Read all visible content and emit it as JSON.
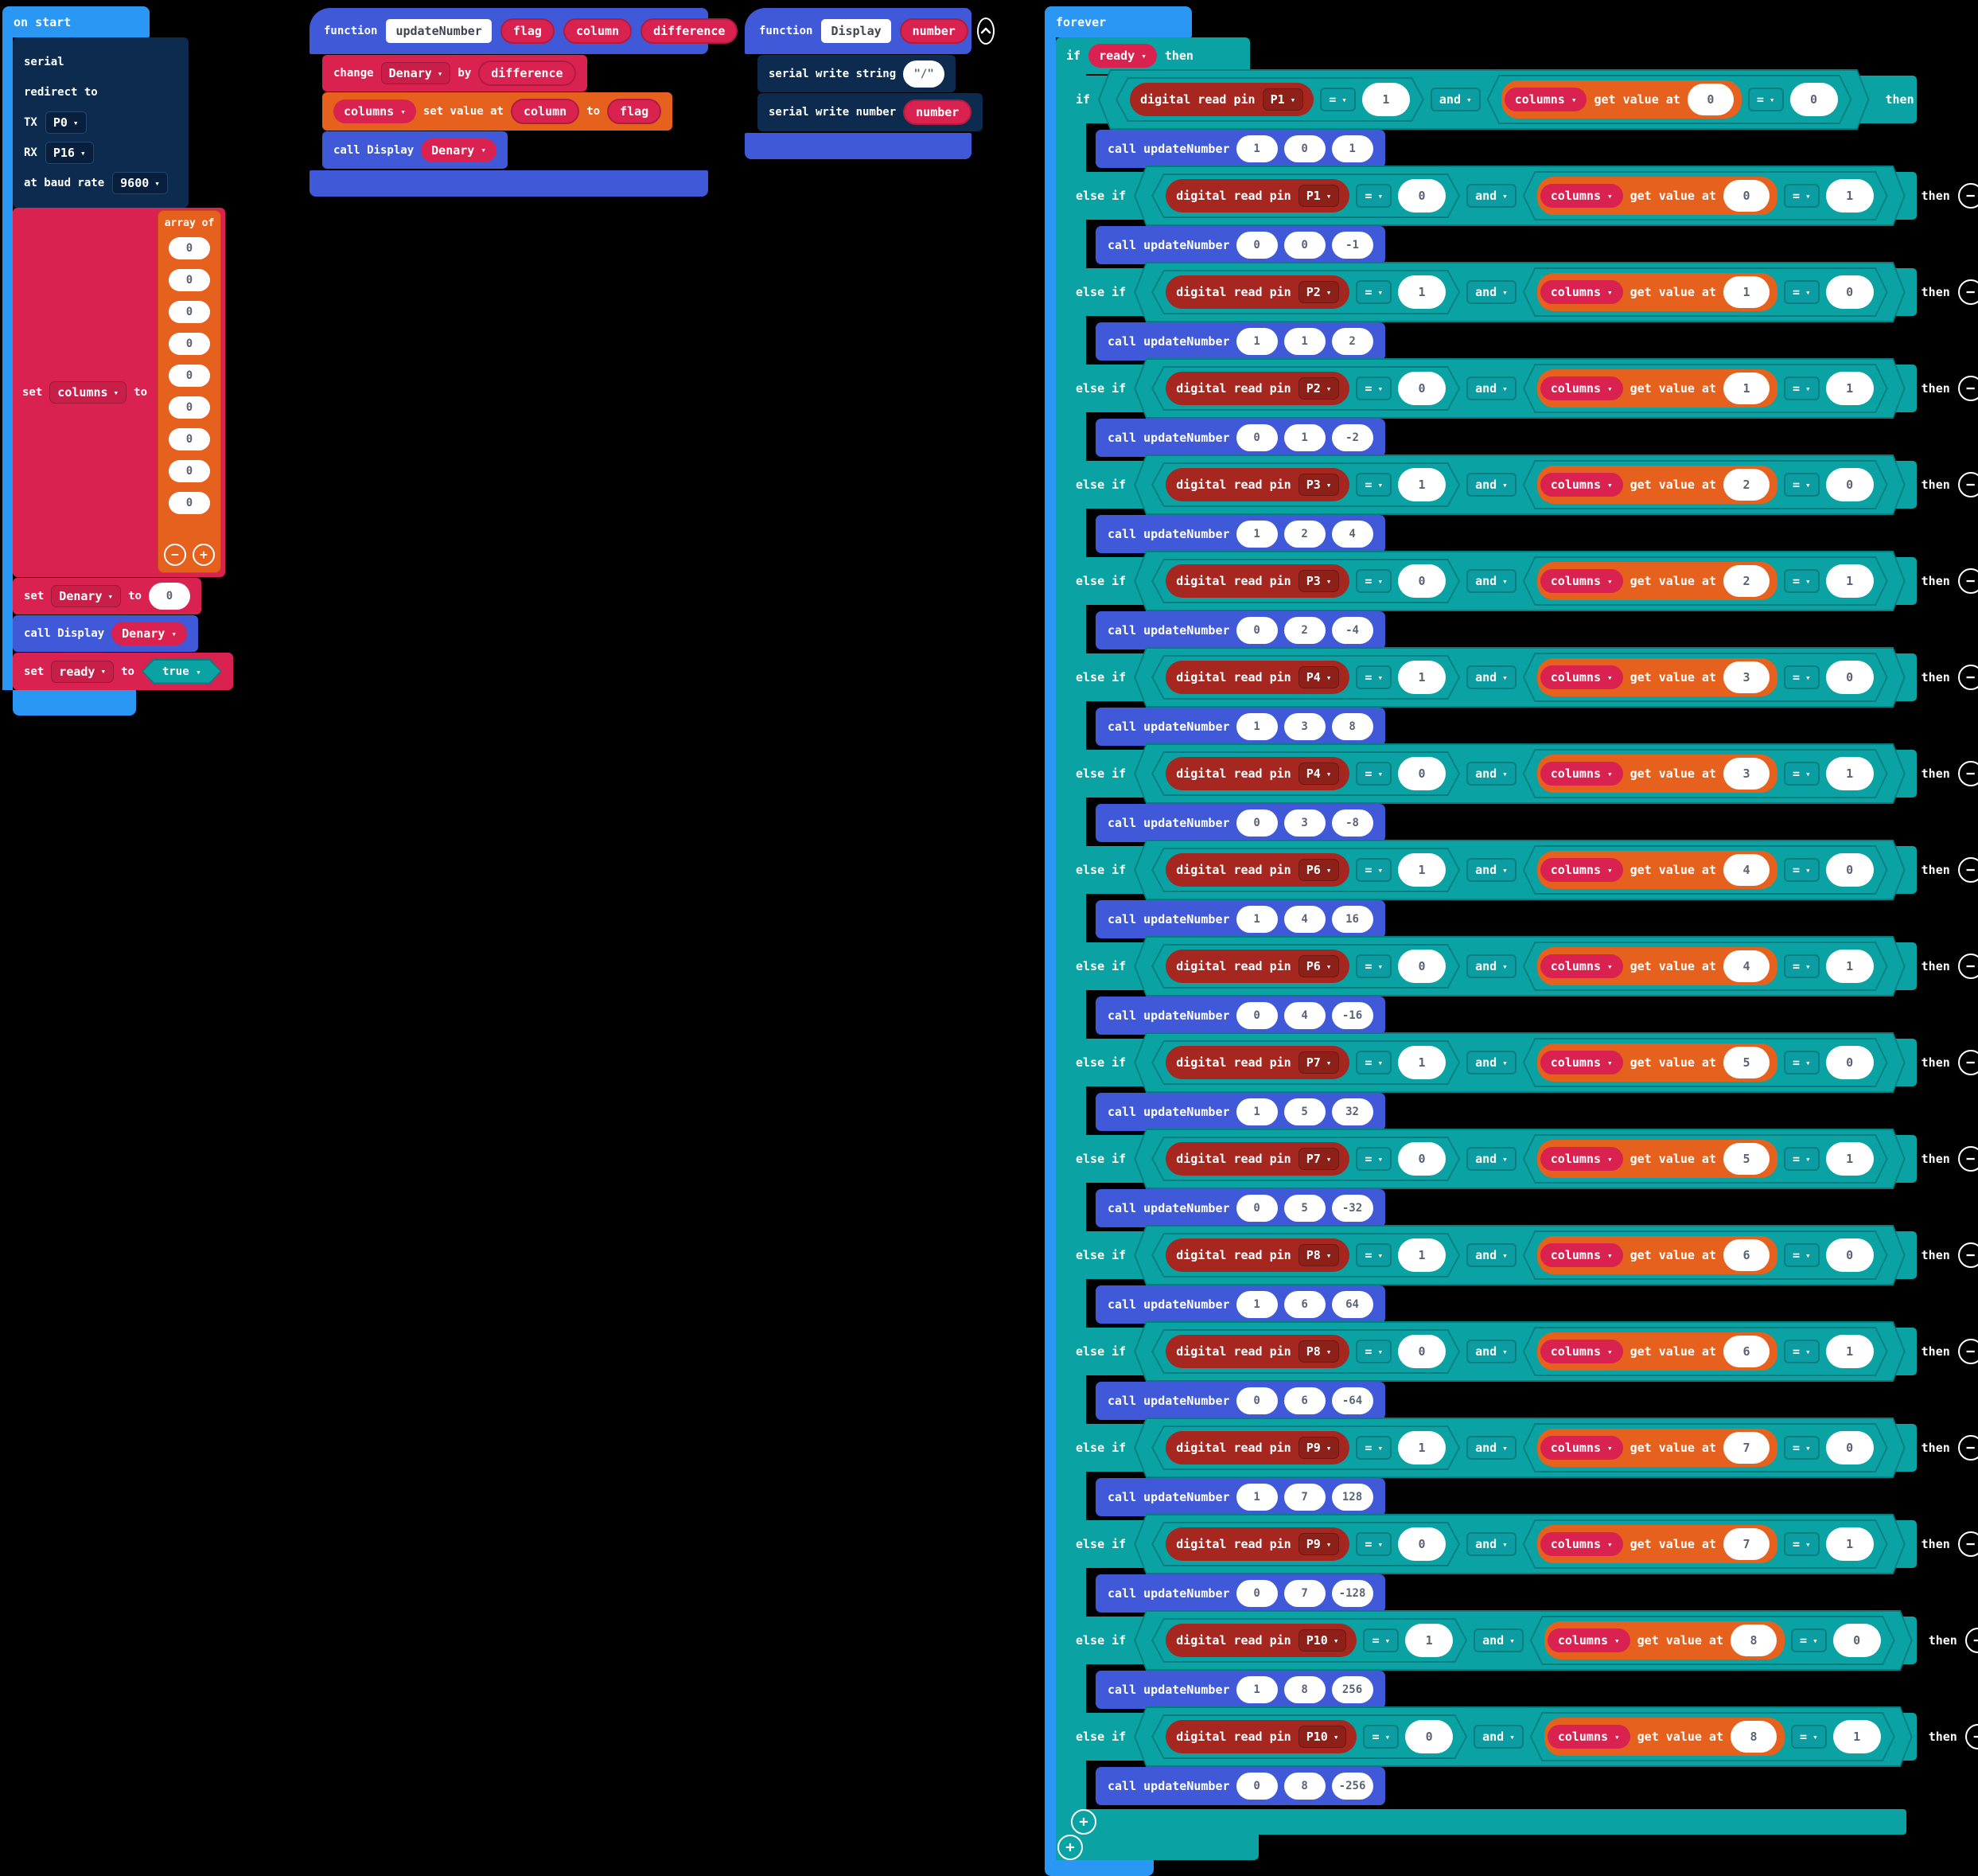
{
  "colors": {
    "event_blue": "#2a97f5",
    "function_blue": "#3f59d8",
    "serial_navy": "#0c2b4e",
    "variable_crimson": "#da2250",
    "pins_brick": "#a6271f",
    "array_orange": "#e6611d",
    "logic_teal": "#0aa2a2"
  },
  "onstart": {
    "hat": "on start",
    "serial": {
      "line1": "serial",
      "line2": "redirect to",
      "tx_label": "TX",
      "tx_value": "P0",
      "rx_label": "RX",
      "rx_value": "P16",
      "baud_label": "at baud rate",
      "baud_value": "9600"
    },
    "set_columns": {
      "set": "set",
      "var": "columns",
      "to": "to"
    },
    "array": {
      "label": "array of",
      "values": [
        "0",
        "0",
        "0",
        "0",
        "0",
        "0",
        "0",
        "0",
        "0"
      ],
      "minus": "−",
      "plus": "+"
    },
    "set_denary": {
      "set": "set",
      "var": "Denary",
      "to": "to",
      "value": "0"
    },
    "call_display": {
      "label": "call Display",
      "arg": "Denary"
    },
    "set_ready": {
      "set": "set",
      "var": "ready",
      "to": "to",
      "value": "true"
    }
  },
  "fn_update": {
    "kw": "function",
    "name": "updateNumber",
    "params": [
      "flag",
      "column",
      "difference"
    ],
    "change": {
      "kw": "change",
      "var": "Denary",
      "by": "by",
      "arg": "difference"
    },
    "setval": {
      "var": "columns",
      "label": "set value at",
      "arg1": "column",
      "to": "to",
      "arg2": "flag"
    },
    "call": {
      "label": "call Display",
      "arg": "Denary"
    }
  },
  "fn_display": {
    "kw": "function",
    "name": "Display",
    "params": [
      "number"
    ],
    "write_string": {
      "label": "serial write string",
      "value": "\"/\""
    },
    "write_number": {
      "label": "serial write number",
      "arg": "number"
    }
  },
  "forever": {
    "hat": "forever",
    "if_ready": {
      "if": "if",
      "var": "ready",
      "then": "then"
    },
    "labels": {
      "if": "if",
      "else_if": "else if",
      "digital_read": "digital read pin",
      "eq": "=",
      "and": "and",
      "columns": "columns",
      "get_value": "get value at",
      "then": "then",
      "call": "call updateNumber",
      "minus": "−",
      "plus": "+"
    },
    "rows": [
      {
        "pin": "P1",
        "v1": "1",
        "idx": "0",
        "v2": "0",
        "args": [
          "1",
          "0",
          "1"
        ]
      },
      {
        "pin": "P1",
        "v1": "0",
        "idx": "0",
        "v2": "1",
        "args": [
          "0",
          "0",
          "-1"
        ]
      },
      {
        "pin": "P2",
        "v1": "1",
        "idx": "1",
        "v2": "0",
        "args": [
          "1",
          "1",
          "2"
        ]
      },
      {
        "pin": "P2",
        "v1": "0",
        "idx": "1",
        "v2": "1",
        "args": [
          "0",
          "1",
          "-2"
        ]
      },
      {
        "pin": "P3",
        "v1": "1",
        "idx": "2",
        "v2": "0",
        "args": [
          "1",
          "2",
          "4"
        ]
      },
      {
        "pin": "P3",
        "v1": "0",
        "idx": "2",
        "v2": "1",
        "args": [
          "0",
          "2",
          "-4"
        ]
      },
      {
        "pin": "P4",
        "v1": "1",
        "idx": "3",
        "v2": "0",
        "args": [
          "1",
          "3",
          "8"
        ]
      },
      {
        "pin": "P4",
        "v1": "0",
        "idx": "3",
        "v2": "1",
        "args": [
          "0",
          "3",
          "-8"
        ]
      },
      {
        "pin": "P6",
        "v1": "1",
        "idx": "4",
        "v2": "0",
        "args": [
          "1",
          "4",
          "16"
        ]
      },
      {
        "pin": "P6",
        "v1": "0",
        "idx": "4",
        "v2": "1",
        "args": [
          "0",
          "4",
          "-16"
        ]
      },
      {
        "pin": "P7",
        "v1": "1",
        "idx": "5",
        "v2": "0",
        "args": [
          "1",
          "5",
          "32"
        ]
      },
      {
        "pin": "P7",
        "v1": "0",
        "idx": "5",
        "v2": "1",
        "args": [
          "0",
          "5",
          "-32"
        ]
      },
      {
        "pin": "P8",
        "v1": "1",
        "idx": "6",
        "v2": "0",
        "args": [
          "1",
          "6",
          "64"
        ]
      },
      {
        "pin": "P8",
        "v1": "0",
        "idx": "6",
        "v2": "1",
        "args": [
          "0",
          "6",
          "-64"
        ]
      },
      {
        "pin": "P9",
        "v1": "1",
        "idx": "7",
        "v2": "0",
        "args": [
          "1",
          "7",
          "128"
        ]
      },
      {
        "pin": "P9",
        "v1": "0",
        "idx": "7",
        "v2": "1",
        "args": [
          "0",
          "7",
          "-128"
        ]
      },
      {
        "pin": "P10",
        "v1": "1",
        "idx": "8",
        "v2": "0",
        "args": [
          "1",
          "8",
          "256"
        ]
      },
      {
        "pin": "P10",
        "v1": "0",
        "idx": "8",
        "v2": "1",
        "args": [
          "0",
          "8",
          "-256"
        ]
      }
    ]
  }
}
